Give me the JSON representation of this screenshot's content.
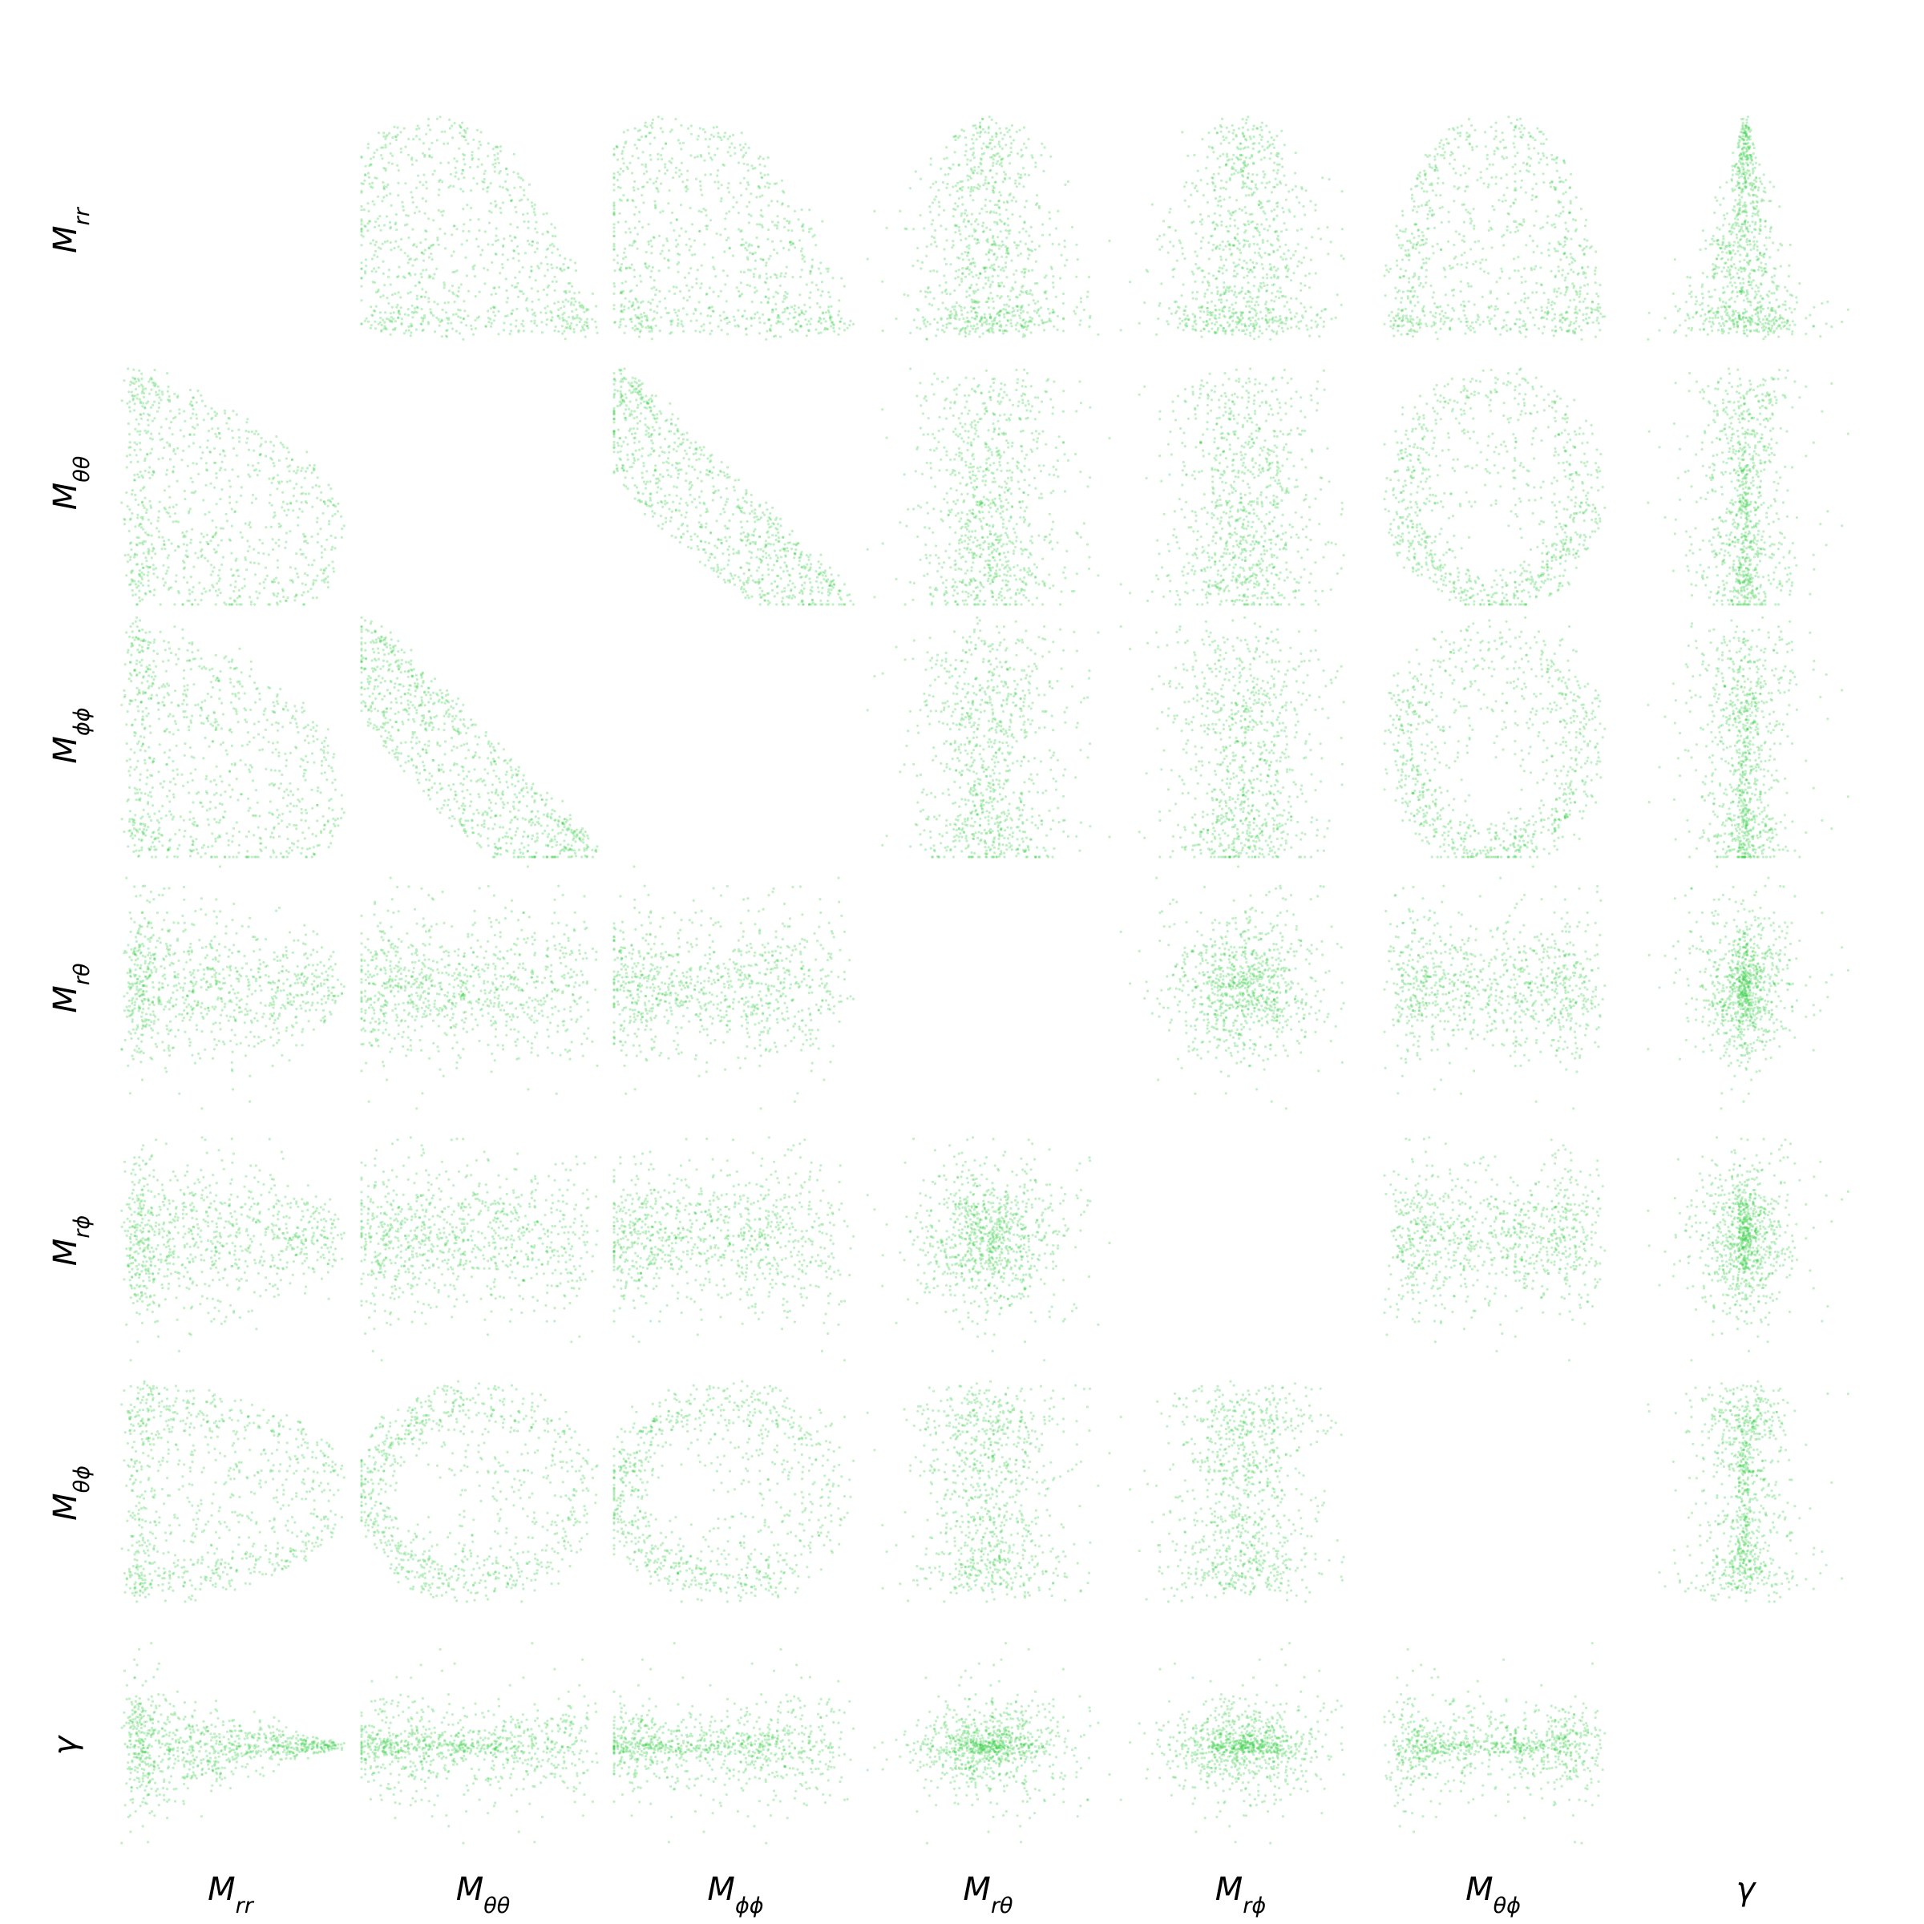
{
  "chart_data": {
    "type": "scatter",
    "layout": "pair-plot-matrix",
    "diagonal": "empty",
    "point_color": "#2ecc40",
    "point_opacity": 0.3,
    "grid": false,
    "axes_visible": false,
    "variables": [
      {
        "id": "Mrr",
        "base": "M",
        "sub": "rr"
      },
      {
        "id": "Mtt",
        "base": "M",
        "sub": "θθ"
      },
      {
        "id": "Mpp",
        "base": "M",
        "sub": "ϕϕ"
      },
      {
        "id": "Mrt",
        "base": "M",
        "sub": "rθ"
      },
      {
        "id": "Mrp",
        "base": "M",
        "sub": "rϕ"
      },
      {
        "id": "Mtp",
        "base": "M",
        "sub": "θϕ"
      },
      {
        "id": "gamma",
        "base": "γ",
        "sub": ""
      }
    ],
    "samples": 900,
    "ranges": {
      "Mrr": [
        -0.1,
        1.0
      ],
      "Mtt": [
        -1.0,
        1.0
      ],
      "Mpp": [
        -1.0,
        1.0
      ],
      "Mrt": [
        -0.75,
        0.75
      ],
      "Mrp": [
        -0.75,
        0.75
      ],
      "Mtp": [
        -0.75,
        0.75
      ],
      "gamma": [
        -0.55,
        0.55
      ]
    },
    "relations": [
      "Mtt ≈ -Mpp (strong negative correlation)",
      "Mtt vs Mtp and Mpp vs Mtp form rings",
      "gamma concentrated near 0, fanning out as Mrr decreases"
    ]
  }
}
